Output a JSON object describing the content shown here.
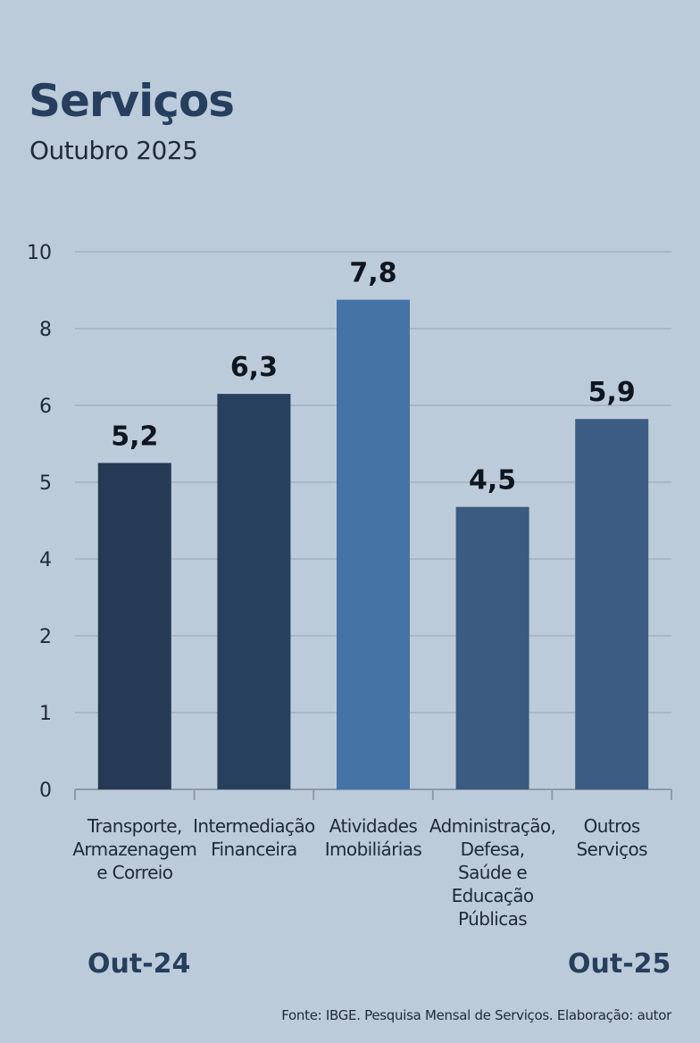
{
  "title": "Serviços",
  "subtitle": "Outubro 2025",
  "source": "Fonte: IBGE. Pesquisa Mensal de Serviços. Elaboração: autor",
  "periods": {
    "left": "Out-24",
    "right": "Out-25"
  },
  "chart_data": {
    "type": "bar",
    "y_ticks": [
      "10",
      "8",
      "6",
      "5",
      "4",
      "2",
      "1",
      "0"
    ],
    "categories": [
      "Transporte, Armazenagem e Correio",
      "Intermediação Financeira",
      "Atividades Imobiliárias",
      "Administração, Defesa, Saúde e Educação Públicas",
      "Outros Serviços"
    ],
    "category_lines": [
      [
        "Transporte,",
        "Armazenagem",
        "e Correio"
      ],
      [
        "Intermediação",
        "Financeira"
      ],
      [
        "Atividades",
        "Imobiliárias"
      ],
      [
        "Administração,",
        "Defesa,",
        "Saúde e",
        "Educação",
        "Públicas"
      ],
      [
        "Outros",
        "Serviços"
      ]
    ],
    "values": [
      5.2,
      6.3,
      7.8,
      4.5,
      5.9
    ],
    "value_labels": [
      "5,2",
      "6,3",
      "7,8",
      "4,5",
      "5,9"
    ],
    "colors": [
      "#263a55",
      "#27405e",
      "#4673a6",
      "#3b5b80",
      "#3d5c83"
    ],
    "grid": true,
    "legend": "none"
  }
}
